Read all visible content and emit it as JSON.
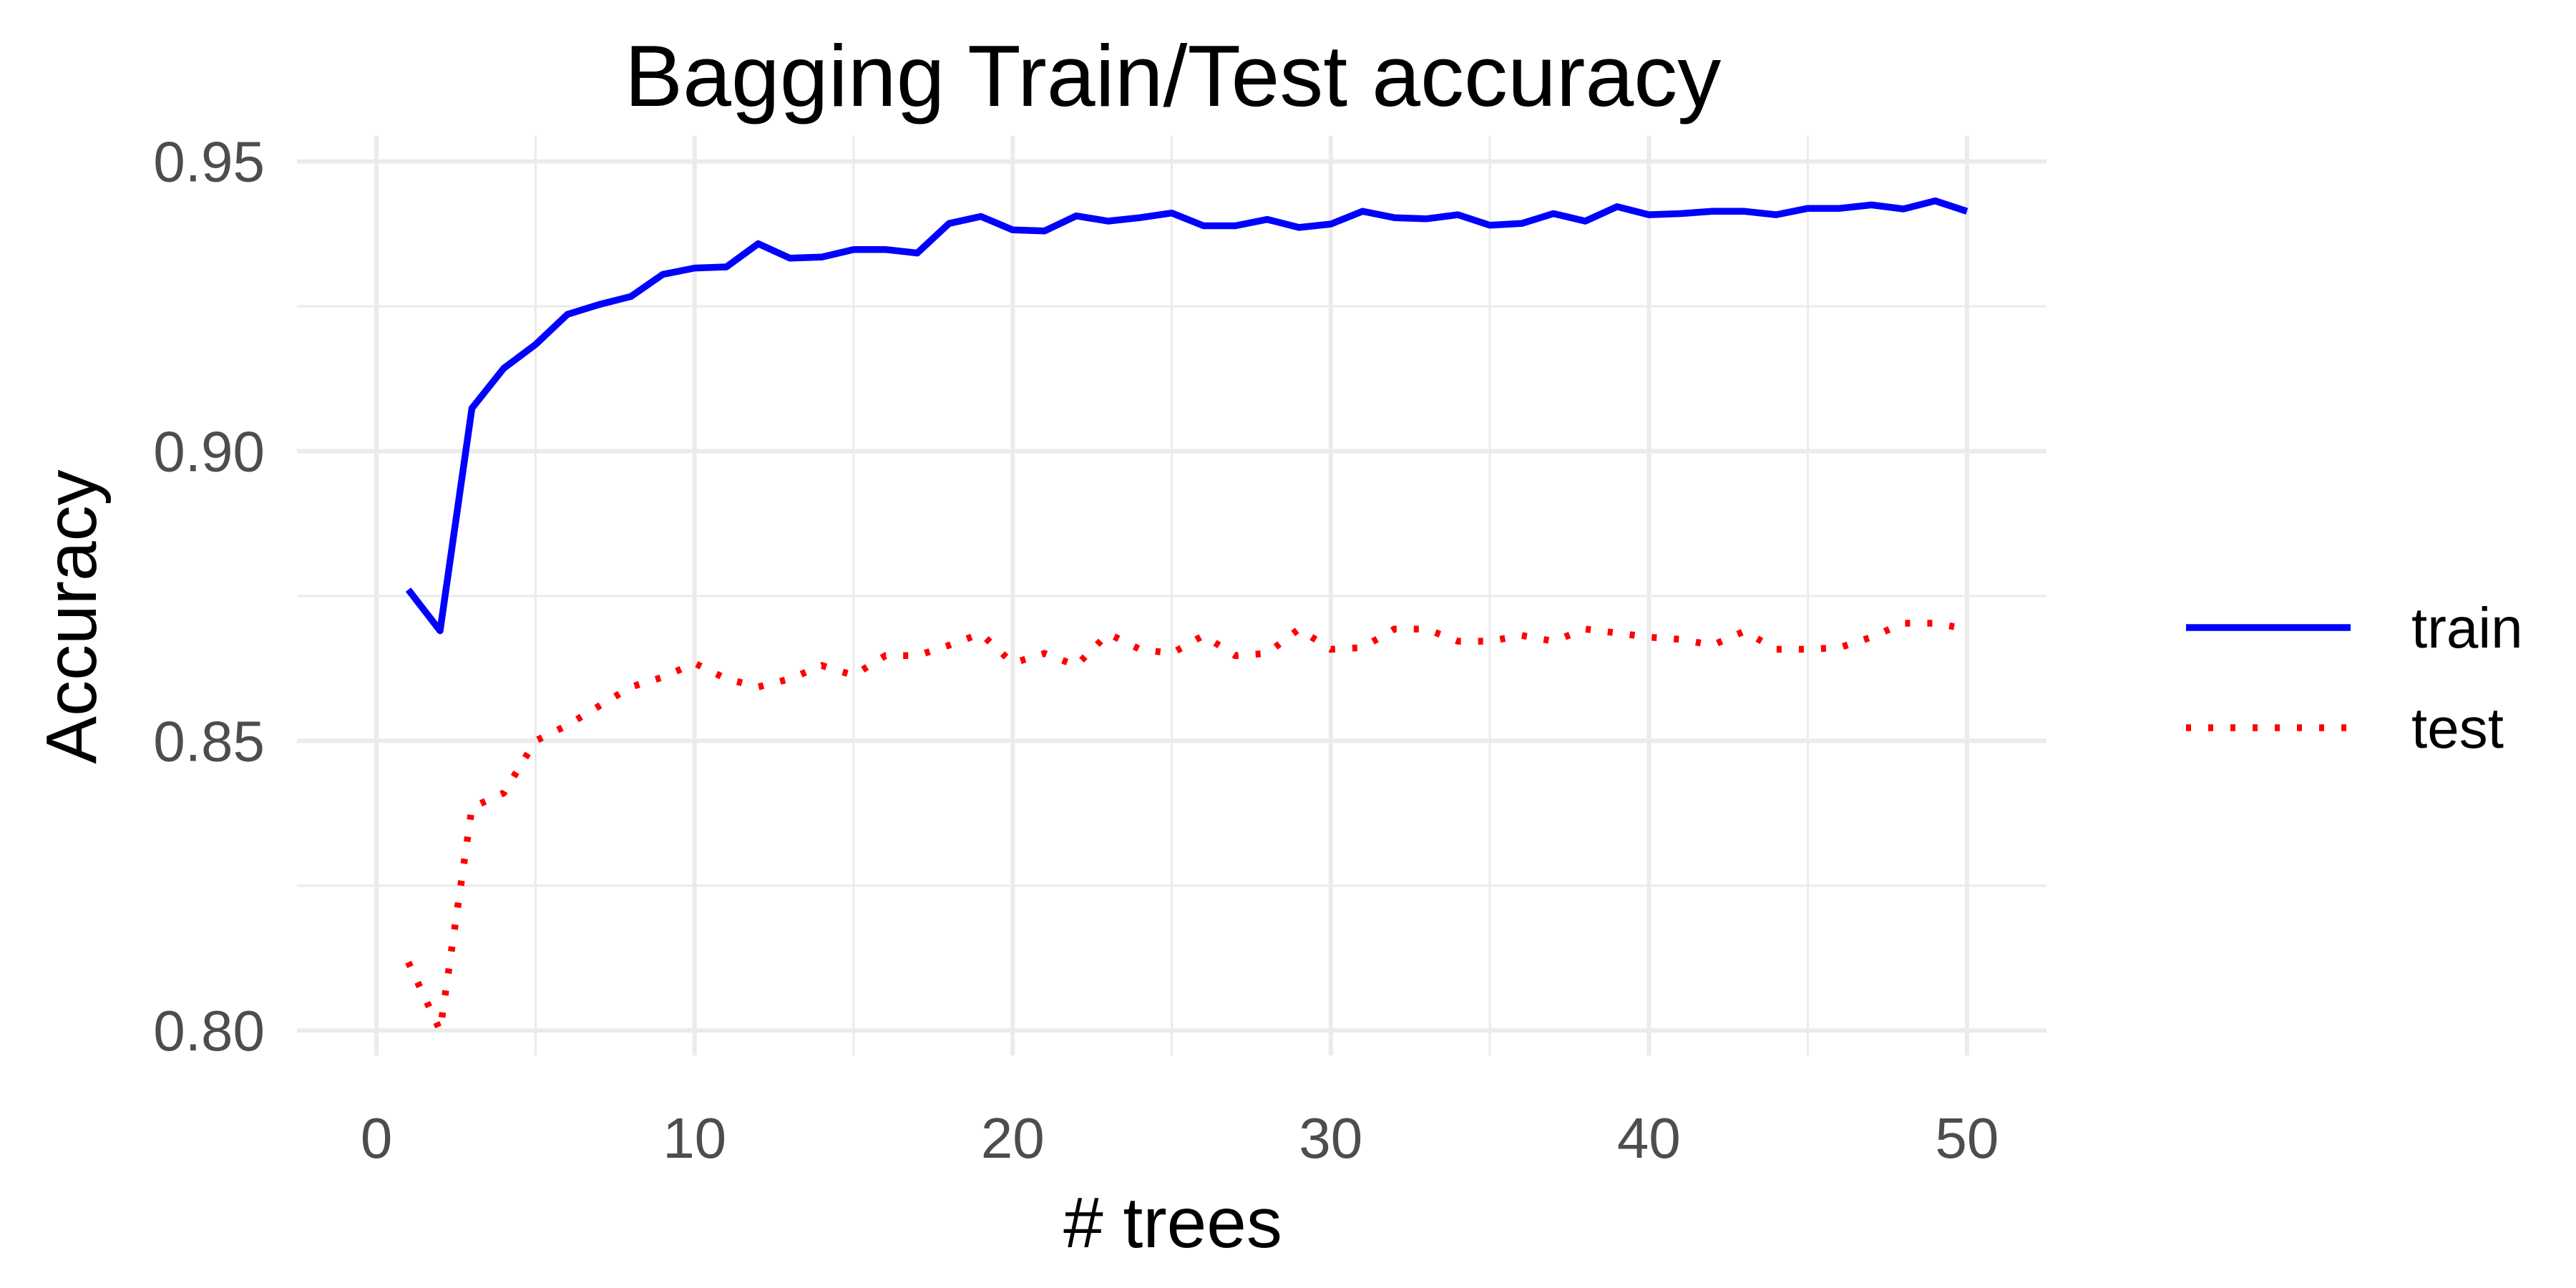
{
  "chart_data": {
    "type": "line",
    "title": "Bagging Train/Test accuracy",
    "xlabel": "# trees",
    "ylabel": "Accuracy",
    "xlim": [
      0,
      50
    ],
    "ylim": [
      0.8,
      0.95
    ],
    "x_ticks": [
      0,
      10,
      20,
      30,
      40,
      50
    ],
    "x_tick_labels": [
      "0",
      "10",
      "20",
      "30",
      "40",
      "50"
    ],
    "y_ticks": [
      0.8,
      0.85,
      0.9,
      0.95
    ],
    "y_tick_labels": [
      "0.80",
      "0.85",
      "0.90",
      "0.95"
    ],
    "grid": true,
    "legend_position": "right",
    "x": [
      1,
      2,
      3,
      4,
      5,
      6,
      7,
      8,
      9,
      10,
      11,
      12,
      13,
      14,
      15,
      16,
      17,
      18,
      19,
      20,
      21,
      22,
      23,
      24,
      25,
      26,
      27,
      28,
      29,
      30,
      31,
      32,
      33,
      34,
      35,
      36,
      37,
      38,
      39,
      40,
      41,
      42,
      43,
      44,
      45,
      46,
      47,
      48,
      49,
      50
    ],
    "series": [
      {
        "name": "train",
        "color": "#0000ff",
        "line_style": "solid",
        "values": [
          0.8761,
          0.869,
          0.9074,
          0.9143,
          0.9184,
          0.9236,
          0.9253,
          0.9267,
          0.9305,
          0.9316,
          0.9318,
          0.9358,
          0.9333,
          0.9335,
          0.9348,
          0.9348,
          0.9342,
          0.9393,
          0.9405,
          0.9382,
          0.938,
          0.9406,
          0.9397,
          0.9403,
          0.9411,
          0.9389,
          0.9389,
          0.94,
          0.9386,
          0.9392,
          0.9414,
          0.9403,
          0.9401,
          0.9408,
          0.939,
          0.9393,
          0.941,
          0.9397,
          0.9422,
          0.9408,
          0.941,
          0.9414,
          0.9414,
          0.9408,
          0.9419,
          0.9419,
          0.9425,
          0.9418,
          0.9432,
          0.9414
        ]
      },
      {
        "name": "test",
        "color": "#ff0000",
        "line_style": "dotted",
        "values": [
          0.8118,
          0.8,
          0.8385,
          0.841,
          0.85,
          0.8527,
          0.856,
          0.8593,
          0.861,
          0.8634,
          0.8607,
          0.8593,
          0.8607,
          0.863,
          0.8613,
          0.8647,
          0.8647,
          0.8665,
          0.8685,
          0.8634,
          0.8651,
          0.863,
          0.8685,
          0.8658,
          0.8651,
          0.8682,
          0.8647,
          0.8651,
          0.8693,
          0.8658,
          0.8661,
          0.8693,
          0.8693,
          0.8672,
          0.8672,
          0.8682,
          0.8672,
          0.8693,
          0.8686,
          0.8679,
          0.8675,
          0.8665,
          0.8689,
          0.8658,
          0.8658,
          0.8661,
          0.8679,
          0.8703,
          0.8703,
          0.8693
        ]
      }
    ]
  }
}
